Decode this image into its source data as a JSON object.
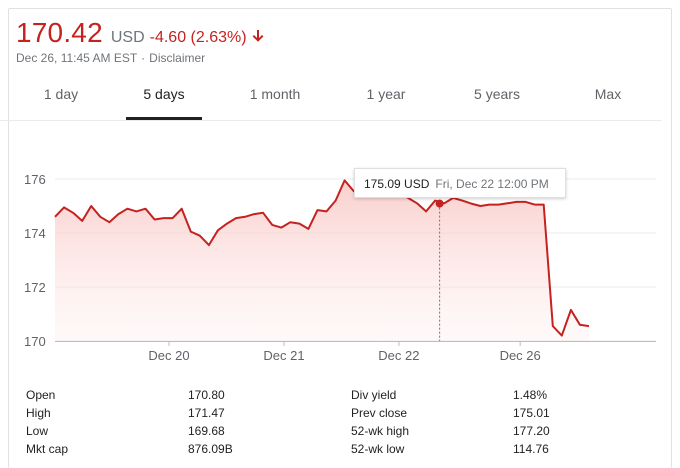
{
  "quote": {
    "price": "170.42",
    "currency": "USD",
    "change": "-4.60 (2.63%)",
    "timestamp": "Dec 26, 11:45 AM EST",
    "disclaimer": "Disclaimer"
  },
  "tabs": [
    {
      "label": "1 day",
      "active": false
    },
    {
      "label": "5 days",
      "active": true
    },
    {
      "label": "1 month",
      "active": false
    },
    {
      "label": "1 year",
      "active": false
    },
    {
      "label": "5 years",
      "active": false
    },
    {
      "label": "Max",
      "active": false
    }
  ],
  "tooltip": {
    "value": "175.09 USD",
    "time": "Fri, Dec 22 12:00 PM"
  },
  "colors": {
    "negative": "#c5221f",
    "fill_top": "#f8c7c4",
    "grid": "#ebebeb"
  },
  "chart_data": {
    "type": "area",
    "ylim": [
      170,
      176
    ],
    "yticks": [
      "176",
      "174",
      "172",
      "170"
    ],
    "yticks_values": [
      176,
      174,
      172,
      170
    ],
    "xticks": [
      "Dec 20",
      "Dec 21",
      "Dec 22",
      "Dec 26"
    ],
    "xticks_index": [
      12.6,
      25.3,
      38.0,
      51.4
    ],
    "tooltip_index": 42.5,
    "tooltip_value": 175.09,
    "series": [
      {
        "values": [
          174.6,
          174.95,
          174.75,
          174.45,
          175.0,
          174.6,
          174.4,
          174.7,
          174.9,
          174.8,
          174.9,
          174.5,
          174.55,
          174.55,
          174.9,
          174.05,
          173.9,
          173.55,
          174.1,
          174.35,
          174.55,
          174.6,
          174.7,
          174.75,
          174.3,
          174.2,
          174.4,
          174.35,
          174.15,
          174.85,
          174.8,
          175.2,
          175.95,
          175.55,
          175.65,
          175.65,
          175.7,
          175.6,
          175.5,
          175.3,
          175.1,
          174.8,
          175.2,
          175.1,
          175.3,
          175.2,
          175.09,
          175.0,
          175.05,
          175.05,
          175.1,
          175.15,
          175.15,
          175.05,
          175.05,
          170.55,
          170.2,
          171.15,
          170.6,
          170.55
        ]
      }
    ]
  },
  "stats": {
    "left": [
      {
        "label": "Open",
        "value": "170.80"
      },
      {
        "label": "High",
        "value": "171.47"
      },
      {
        "label": "Low",
        "value": "169.68"
      },
      {
        "label": "Mkt cap",
        "value": "876.09B"
      }
    ],
    "right": [
      {
        "label": "Div yield",
        "value": "1.48%"
      },
      {
        "label": "Prev close",
        "value": "175.01"
      },
      {
        "label": "52-wk high",
        "value": "177.20"
      },
      {
        "label": "52-wk low",
        "value": "114.76"
      }
    ]
  }
}
